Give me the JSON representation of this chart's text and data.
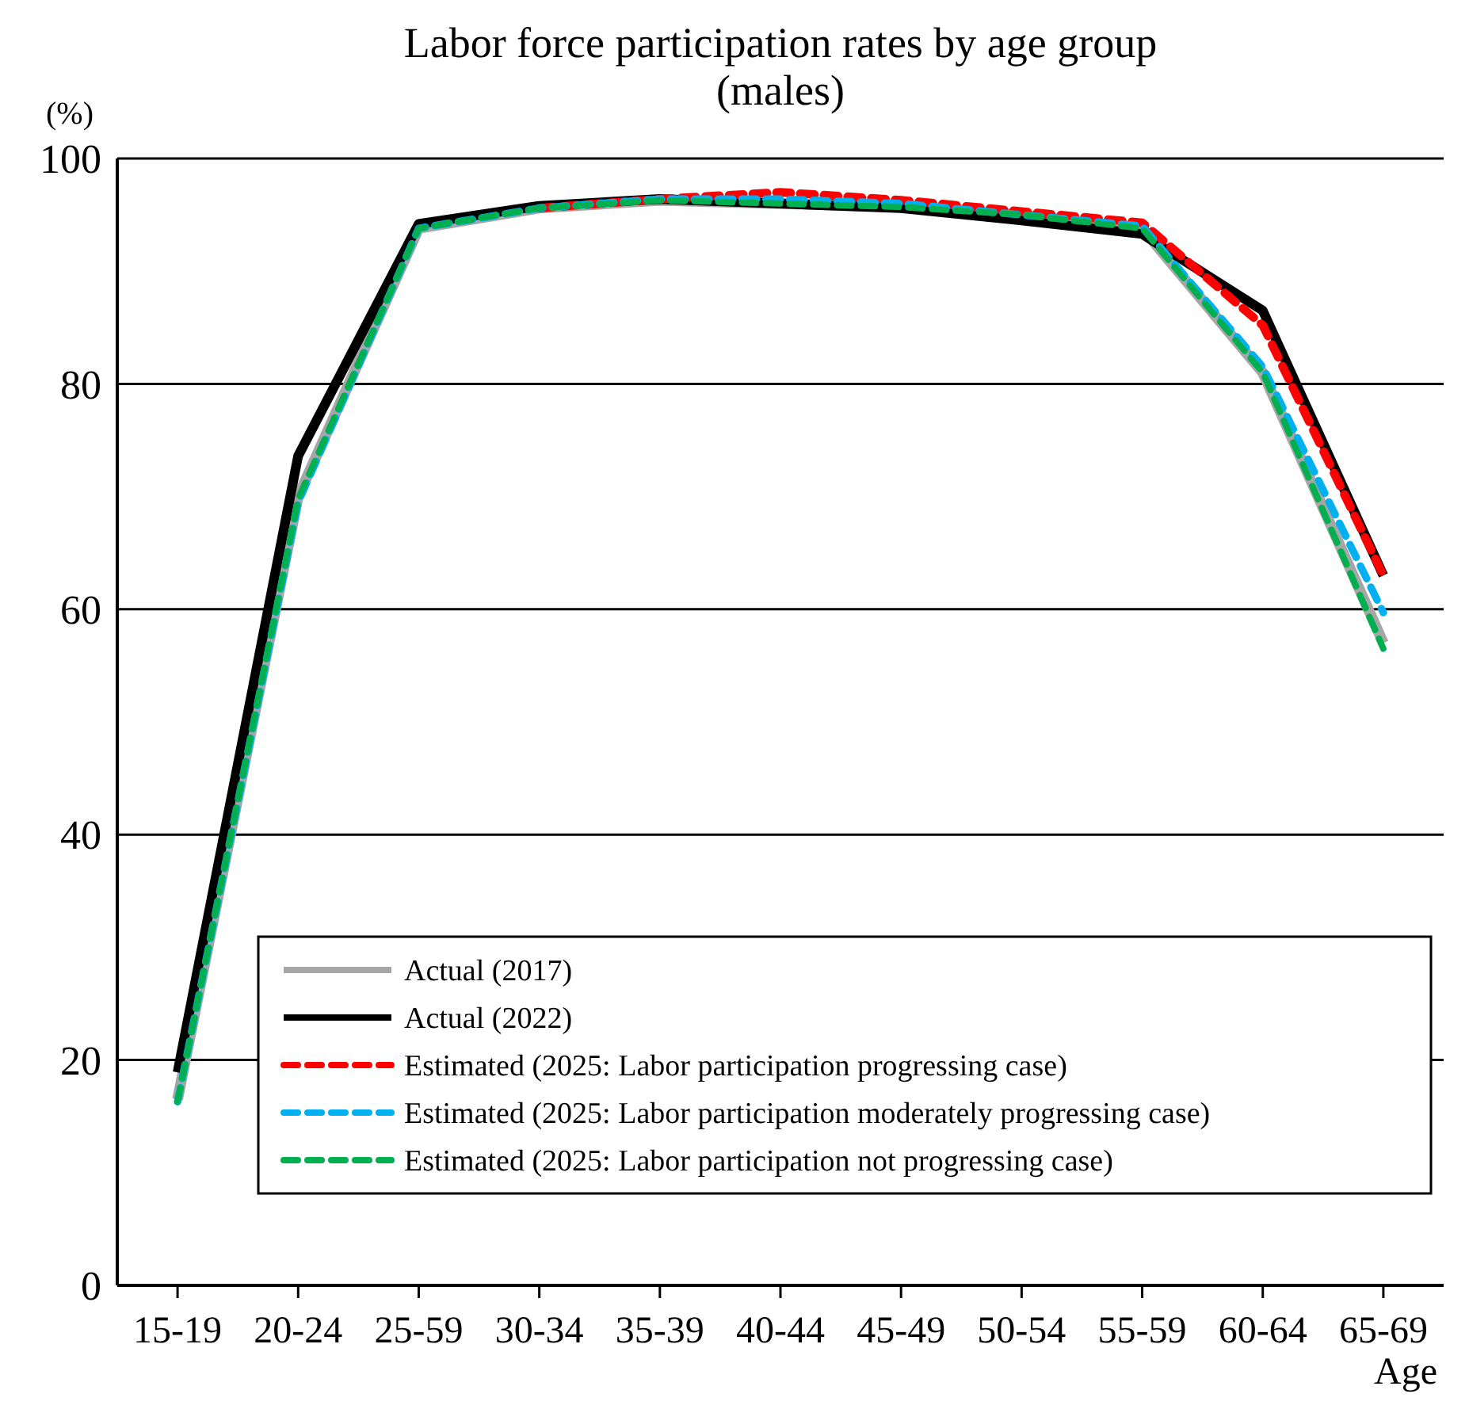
{
  "chart_data": {
    "type": "line",
    "title": "Labor force participation rates by age group (males)",
    "ylabel": "(%)",
    "xlabel": "Age",
    "categories": [
      "15-19",
      "20-24",
      "25-59",
      "30-34",
      "35-39",
      "40-44",
      "45-49",
      "50-54",
      "55-59",
      "60-64",
      "65-69"
    ],
    "ylim": [
      0,
      100
    ],
    "yticks": [
      0,
      20,
      40,
      60,
      80,
      100
    ],
    "grid": "y",
    "legend": "bottom right",
    "marker": "none",
    "series": [
      {
        "name": "Actual (2017)",
        "color": "#a6a6a6",
        "line_style": "solid",
        "values": [
          16.5,
          70.0,
          93.8,
          95.6,
          96.3,
          96.0,
          95.7,
          95.0,
          93.8,
          81.0,
          57.0
        ]
      },
      {
        "name": "Actual (2022)",
        "color": "#000000",
        "line_style": "solid",
        "values": [
          18.9,
          73.6,
          94.2,
          95.8,
          96.4,
          96.0,
          95.6,
          94.5,
          93.3,
          86.5,
          63.0
        ]
      },
      {
        "name": "Estimated (2025: Labor participation progressing case)",
        "color": "#ff0000",
        "line_style": "dashed",
        "values": [
          null,
          null,
          null,
          95.6,
          96.4,
          97.0,
          96.3,
          95.3,
          94.3,
          85.2,
          63.0
        ]
      },
      {
        "name": "Estimated (2025: Labor participation moderately progressing case)",
        "color": "#00b0f0",
        "line_style": "dashed",
        "values": [
          16.3,
          69.5,
          93.8,
          95.6,
          96.4,
          96.4,
          96.0,
          95.0,
          94.0,
          81.5,
          59.7
        ]
      },
      {
        "name": "Estimated (2025: Labor participation not progressing case)",
        "color": "#00b050",
        "line_style": "dashed",
        "values": [
          16.3,
          69.8,
          93.8,
          95.6,
          96.3,
          96.0,
          95.7,
          95.0,
          93.8,
          81.0,
          56.5
        ]
      }
    ]
  }
}
